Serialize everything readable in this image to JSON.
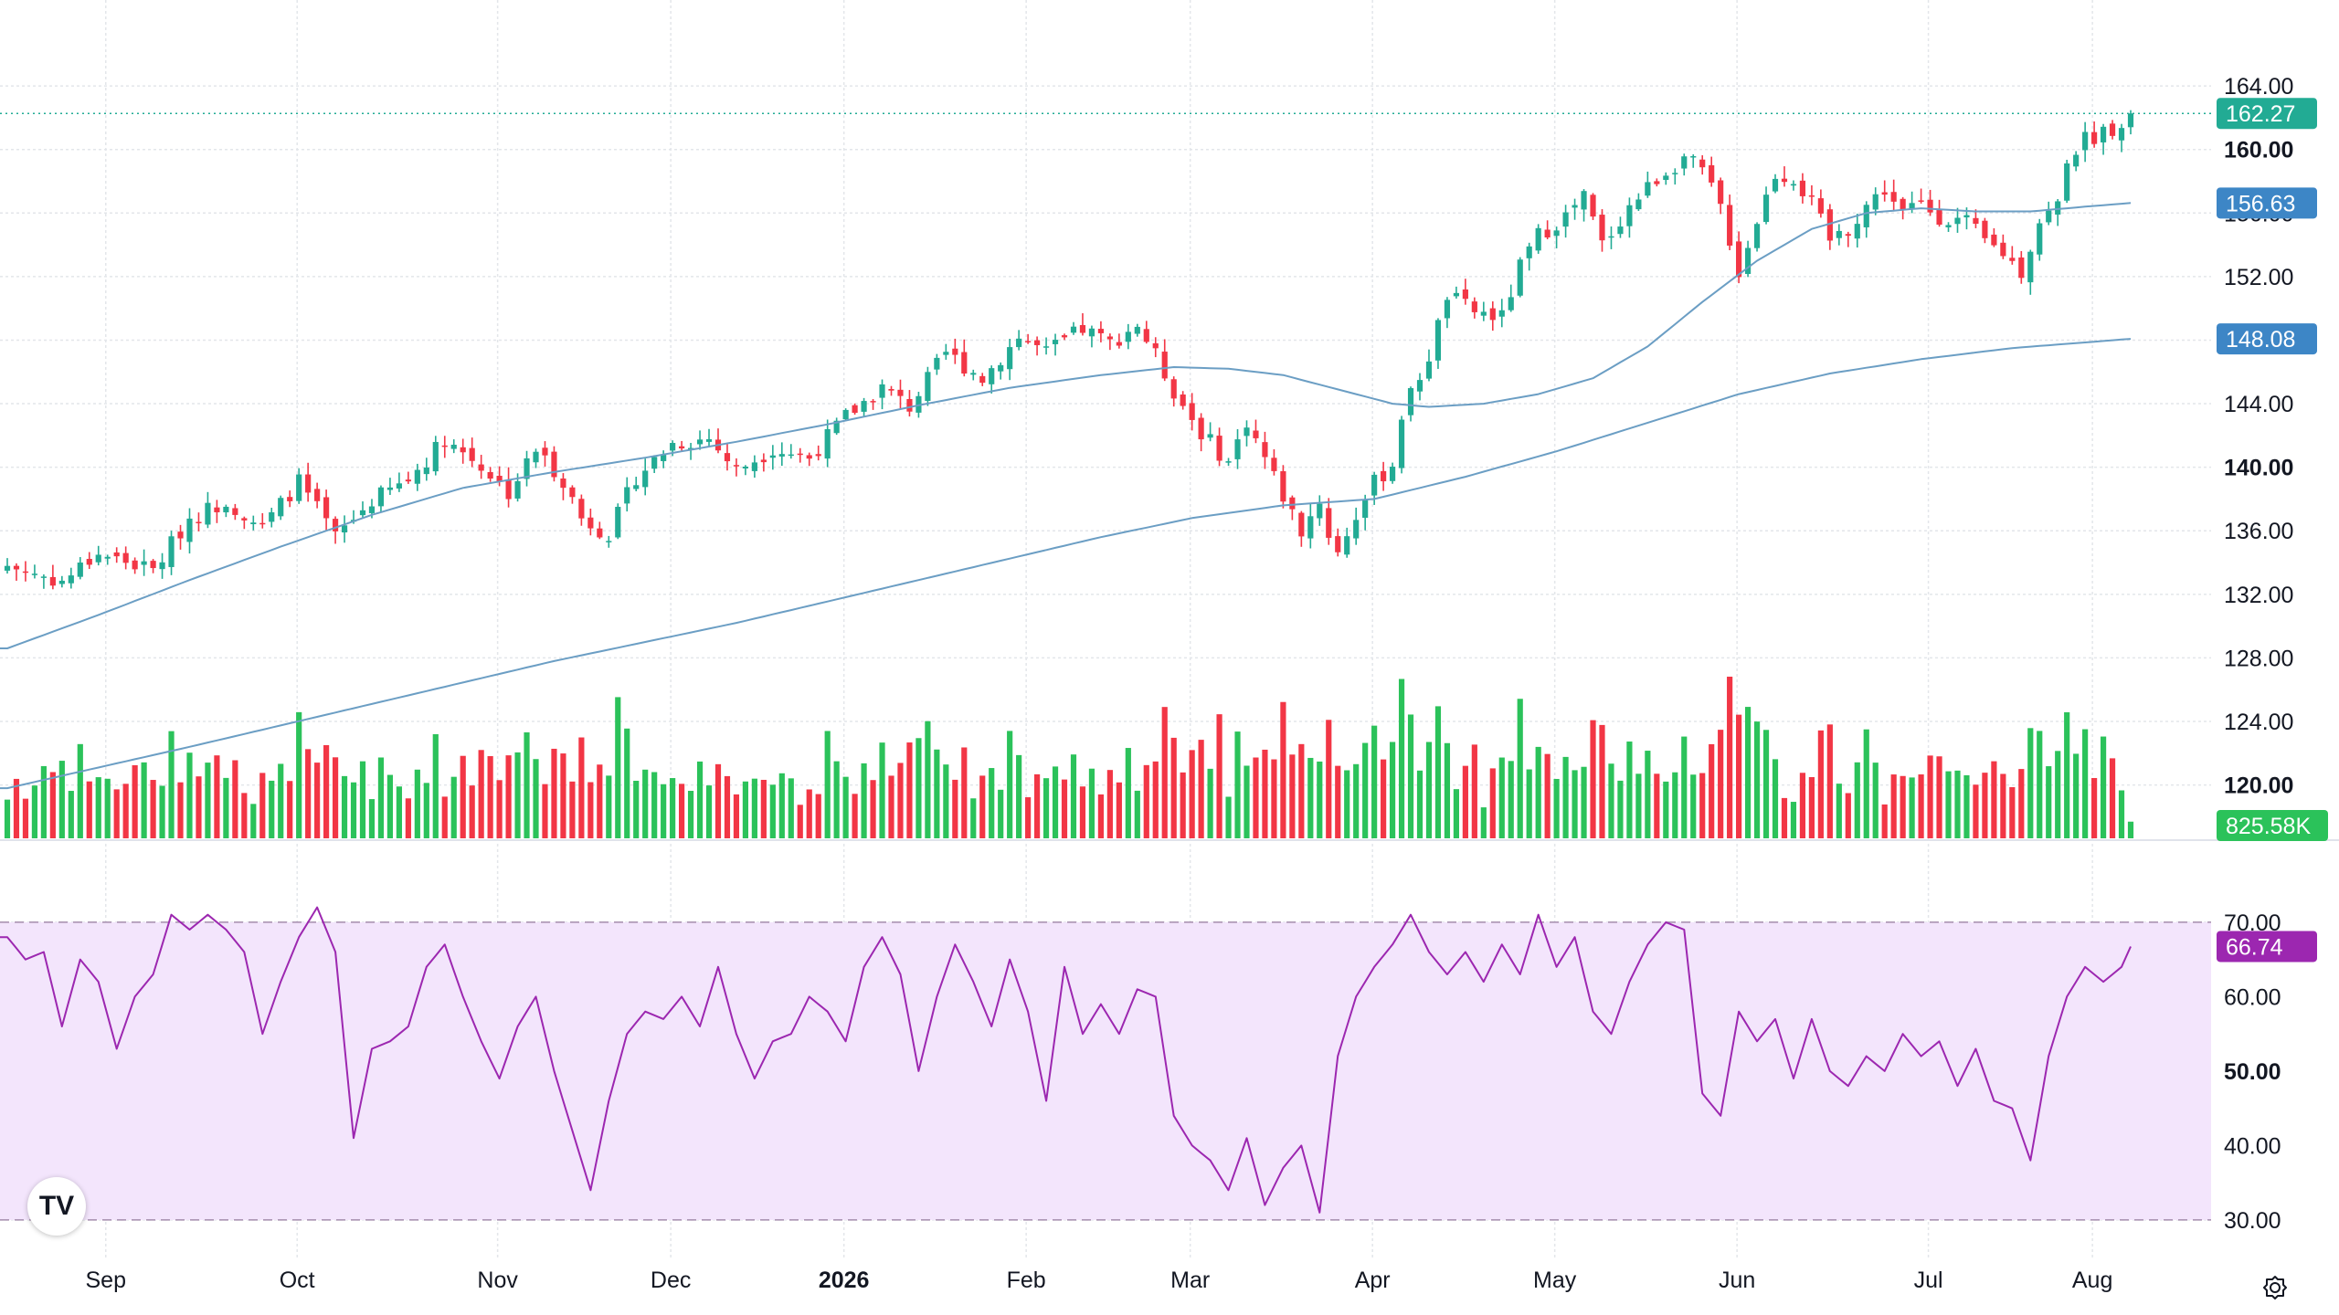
{
  "price_axis": {
    "ticks": [
      "164.00",
      "160.00",
      "156.00",
      "152.00",
      "148.00",
      "144.00",
      "140.00",
      "136.00",
      "132.00",
      "128.00",
      "124.00",
      "120.00"
    ],
    "bold_ticks": [
      "160.00",
      "140.00",
      "120.00"
    ]
  },
  "rsi_axis": {
    "ticks": [
      "70.00",
      "60.00",
      "50.00",
      "40.00",
      "30.00"
    ],
    "bold_ticks": [
      "50.00"
    ]
  },
  "time_axis": [
    "Sep",
    "Oct",
    "Nov",
    "Dec",
    "2026",
    "Feb",
    "Mar",
    "Apr",
    "May",
    "Jun",
    "Jul",
    "Aug"
  ],
  "badges": {
    "last_price": "162.27",
    "ma_fast": "156.63",
    "ma_slow": "148.08",
    "volume": "825.58K",
    "rsi": "66.74"
  },
  "colors": {
    "up": "#22ab94",
    "down": "#f23645",
    "up_volume": "#2bc25a",
    "down_volume": "#f23645",
    "ma_line": "#6b9ec4",
    "last_price_badge": "#22ab94",
    "ma_badge": "#3d86c6",
    "volume_badge": "#2bc25a",
    "rsi_line": "#9c27b0",
    "rsi_band": "#f3e5fc",
    "rsi_badge": "#9c27b0",
    "grid": "#e3e6ea"
  },
  "icons": {
    "logo": "tradingview-logo-icon",
    "settings": "settings-gear-icon"
  },
  "logo_text": "TV",
  "chart_data": {
    "type": "candlestick",
    "price_ylim": [
      119,
      165.5
    ],
    "anchors": [
      [
        0,
        133.8
      ],
      [
        6,
        132.8
      ],
      [
        10,
        134.6
      ],
      [
        16,
        133.5
      ],
      [
        20,
        136.8
      ],
      [
        24,
        137.9
      ],
      [
        28,
        136.2
      ],
      [
        32,
        139.1
      ],
      [
        36,
        135.6
      ],
      [
        40,
        137.9
      ],
      [
        44,
        139.2
      ],
      [
        48,
        141.8
      ],
      [
        52,
        140.1
      ],
      [
        55,
        138.4
      ],
      [
        58,
        141.1
      ],
      [
        61,
        139.2
      ],
      [
        63,
        136.8
      ],
      [
        66,
        135.8
      ],
      [
        69,
        139.4
      ],
      [
        73,
        141.5
      ],
      [
        77,
        141.8
      ],
      [
        80,
        139.8
      ],
      [
        84,
        141.2
      ],
      [
        88,
        140.6
      ],
      [
        92,
        143.2
      ],
      [
        96,
        145.0
      ],
      [
        99,
        143.8
      ],
      [
        103,
        147.2
      ],
      [
        107,
        145.6
      ],
      [
        111,
        148.2
      ],
      [
        114,
        147.2
      ],
      [
        118,
        148.7
      ],
      [
        121,
        147.8
      ],
      [
        124,
        149.0
      ],
      [
        126,
        147.0
      ],
      [
        128,
        144.8
      ],
      [
        131,
        142.2
      ],
      [
        134,
        140.3
      ],
      [
        136,
        142.9
      ],
      [
        138,
        140.6
      ],
      [
        140,
        138.2
      ],
      [
        142,
        136.0
      ],
      [
        144,
        137.9
      ],
      [
        145,
        135.8
      ],
      [
        146,
        134.6
      ],
      [
        148,
        137.0
      ],
      [
        150,
        139.0
      ],
      [
        152,
        140.2
      ],
      [
        153,
        143.3
      ],
      [
        156,
        147.0
      ],
      [
        158,
        150.8
      ],
      [
        161,
        149.8
      ],
      [
        164,
        149.4
      ],
      [
        166,
        152.6
      ],
      [
        168,
        154.6
      ],
      [
        171,
        155.8
      ],
      [
        173,
        157.0
      ],
      [
        175,
        154.0
      ],
      [
        178,
        156.4
      ],
      [
        181,
        158.2
      ],
      [
        184,
        159.5
      ],
      [
        186,
        158.6
      ],
      [
        188,
        156.4
      ],
      [
        190,
        152.3
      ],
      [
        192,
        155.6
      ],
      [
        194,
        158.5
      ],
      [
        196,
        158.2
      ],
      [
        198,
        156.6
      ],
      [
        200,
        154.3
      ],
      [
        202,
        155.0
      ],
      [
        204,
        156.5
      ],
      [
        206,
        157.5
      ],
      [
        208,
        156.0
      ],
      [
        210,
        156.6
      ],
      [
        212,
        155.8
      ],
      [
        215,
        155.4
      ],
      [
        217,
        154.2
      ],
      [
        219,
        153.5
      ],
      [
        221,
        152.3
      ],
      [
        223,
        155.5
      ],
      [
        225,
        156.5
      ],
      [
        226,
        159.5
      ],
      [
        228,
        160.6
      ],
      [
        231,
        161.4
      ],
      [
        233,
        162.27
      ]
    ],
    "ma_fast": [
      [
        0,
        128.6
      ],
      [
        10,
        130.7
      ],
      [
        20,
        132.9
      ],
      [
        30,
        135.0
      ],
      [
        40,
        137.0
      ],
      [
        50,
        138.7
      ],
      [
        60,
        139.7
      ],
      [
        70,
        140.6
      ],
      [
        80,
        141.6
      ],
      [
        90,
        142.7
      ],
      [
        100,
        143.9
      ],
      [
        110,
        145.0
      ],
      [
        120,
        145.8
      ],
      [
        128,
        146.3
      ],
      [
        134,
        146.2
      ],
      [
        140,
        145.8
      ],
      [
        146,
        144.9
      ],
      [
        152,
        144.0
      ],
      [
        156,
        143.8
      ],
      [
        162,
        144.0
      ],
      [
        168,
        144.6
      ],
      [
        174,
        145.6
      ],
      [
        180,
        147.6
      ],
      [
        186,
        150.4
      ],
      [
        192,
        153.0
      ],
      [
        198,
        155.0
      ],
      [
        204,
        156.0
      ],
      [
        210,
        156.3
      ],
      [
        216,
        156.1
      ],
      [
        222,
        156.1
      ],
      [
        228,
        156.4
      ],
      [
        233,
        156.63
      ]
    ],
    "ma_slow": [
      [
        0,
        119.8
      ],
      [
        20,
        122.4
      ],
      [
        40,
        125.1
      ],
      [
        60,
        127.8
      ],
      [
        80,
        130.2
      ],
      [
        100,
        132.9
      ],
      [
        120,
        135.6
      ],
      [
        130,
        136.8
      ],
      [
        140,
        137.6
      ],
      [
        150,
        138.0
      ],
      [
        160,
        139.4
      ],
      [
        170,
        141.0
      ],
      [
        180,
        142.8
      ],
      [
        190,
        144.6
      ],
      [
        200,
        145.9
      ],
      [
        210,
        146.8
      ],
      [
        220,
        147.5
      ],
      [
        233,
        148.08
      ]
    ],
    "volume_ylim": [
      0,
      1
    ],
    "rsi_ylim": [
      29.5,
      73.3
    ],
    "rsi_levels": [
      70,
      30
    ],
    "rsi": [
      [
        0,
        68
      ],
      [
        2,
        65
      ],
      [
        4,
        66
      ],
      [
        6,
        56
      ],
      [
        8,
        65
      ],
      [
        10,
        62
      ],
      [
        12,
        53
      ],
      [
        14,
        60
      ],
      [
        16,
        63
      ],
      [
        18,
        71
      ],
      [
        20,
        69
      ],
      [
        22,
        71
      ],
      [
        24,
        69
      ],
      [
        26,
        66
      ],
      [
        28,
        55
      ],
      [
        30,
        62
      ],
      [
        32,
        68
      ],
      [
        34,
        72
      ],
      [
        36,
        66
      ],
      [
        38,
        41
      ],
      [
        40,
        53
      ],
      [
        42,
        54
      ],
      [
        44,
        56
      ],
      [
        46,
        64
      ],
      [
        48,
        67
      ],
      [
        50,
        60
      ],
      [
        52,
        54
      ],
      [
        54,
        49
      ],
      [
        56,
        56
      ],
      [
        58,
        60
      ],
      [
        60,
        50
      ],
      [
        62,
        42
      ],
      [
        64,
        34
      ],
      [
        66,
        46
      ],
      [
        68,
        55
      ],
      [
        70,
        58
      ],
      [
        72,
        57
      ],
      [
        74,
        60
      ],
      [
        76,
        56
      ],
      [
        78,
        64
      ],
      [
        80,
        55
      ],
      [
        82,
        49
      ],
      [
        84,
        54
      ],
      [
        86,
        55
      ],
      [
        88,
        60
      ],
      [
        90,
        58
      ],
      [
        92,
        54
      ],
      [
        94,
        64
      ],
      [
        96,
        68
      ],
      [
        98,
        63
      ],
      [
        100,
        50
      ],
      [
        102,
        60
      ],
      [
        104,
        67
      ],
      [
        106,
        62
      ],
      [
        108,
        56
      ],
      [
        110,
        65
      ],
      [
        112,
        58
      ],
      [
        114,
        46
      ],
      [
        116,
        64
      ],
      [
        118,
        55
      ],
      [
        120,
        59
      ],
      [
        122,
        55
      ],
      [
        124,
        61
      ],
      [
        126,
        60
      ],
      [
        128,
        44
      ],
      [
        130,
        40
      ],
      [
        132,
        38
      ],
      [
        134,
        34
      ],
      [
        136,
        41
      ],
      [
        138,
        32
      ],
      [
        140,
        37
      ],
      [
        142,
        40
      ],
      [
        144,
        31
      ],
      [
        146,
        52
      ],
      [
        148,
        60
      ],
      [
        150,
        64
      ],
      [
        152,
        67
      ],
      [
        154,
        71
      ],
      [
        156,
        66
      ],
      [
        158,
        63
      ],
      [
        160,
        66
      ],
      [
        162,
        62
      ],
      [
        164,
        67
      ],
      [
        166,
        63
      ],
      [
        168,
        71
      ],
      [
        170,
        64
      ],
      [
        172,
        68
      ],
      [
        174,
        58
      ],
      [
        176,
        55
      ],
      [
        178,
        62
      ],
      [
        180,
        67
      ],
      [
        182,
        70
      ],
      [
        184,
        69
      ],
      [
        186,
        47
      ],
      [
        188,
        44
      ],
      [
        190,
        58
      ],
      [
        192,
        54
      ],
      [
        194,
        57
      ],
      [
        196,
        49
      ],
      [
        198,
        57
      ],
      [
        200,
        50
      ],
      [
        202,
        48
      ],
      [
        204,
        52
      ],
      [
        206,
        50
      ],
      [
        208,
        55
      ],
      [
        210,
        52
      ],
      [
        212,
        54
      ],
      [
        214,
        48
      ],
      [
        216,
        53
      ],
      [
        218,
        46
      ],
      [
        220,
        45
      ],
      [
        222,
        38
      ],
      [
        224,
        52
      ],
      [
        226,
        60
      ],
      [
        228,
        64
      ],
      [
        230,
        62
      ],
      [
        232,
        64
      ],
      [
        233,
        66.74
      ]
    ],
    "time_labels": [
      "Sep",
      "Oct",
      "Nov",
      "Dec",
      "2026",
      "Feb",
      "Mar",
      "Apr",
      "May",
      "Jun",
      "Jul",
      "Aug"
    ],
    "time_label_bars": [
      10,
      31,
      53,
      72,
      91,
      111,
      129,
      149,
      169,
      189,
      210,
      228
    ],
    "last_price": 162.27,
    "last_volume": "825.58K",
    "last_rsi": 66.74,
    "grid": true
  }
}
